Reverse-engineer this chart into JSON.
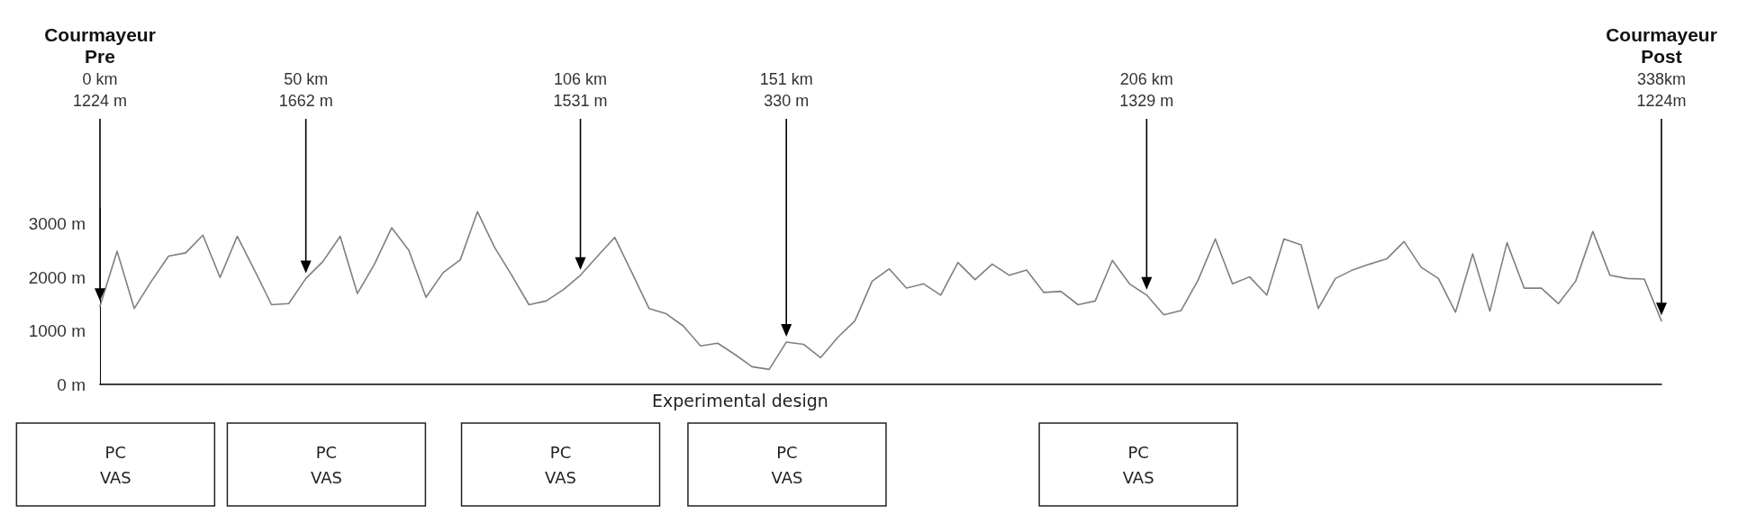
{
  "chart_data": {
    "type": "line",
    "color": "#7f7f7f",
    "marker": "none",
    "tick_labels": "y",
    "categories": [
      null,
      null,
      null,
      null,
      null,
      null,
      null,
      null,
      null,
      null,
      null,
      null,
      null,
      null,
      null,
      null,
      null,
      null,
      null,
      null,
      null,
      null,
      null,
      null,
      null,
      null,
      null,
      null,
      null,
      null,
      null,
      null,
      null,
      null,
      null,
      null,
      null,
      null,
      null,
      null,
      null,
      null,
      null,
      null,
      null,
      null,
      null,
      null,
      null,
      null,
      null,
      null,
      null,
      null,
      null,
      null,
      null,
      null,
      null,
      null,
      null,
      null,
      null,
      null,
      null,
      null,
      null,
      null,
      null,
      null,
      null,
      null,
      null,
      null,
      null,
      null,
      null,
      null,
      null,
      null,
      null,
      null,
      null,
      null,
      null,
      null,
      null,
      null,
      null,
      null,
      null,
      null
    ],
    "values": [
      1460,
      2490,
      1420,
      1930,
      2400,
      2460,
      2790,
      2000,
      2770,
      2140,
      1490,
      1510,
      1980,
      2300,
      2770,
      1700,
      2250,
      2930,
      2510,
      1630,
      2090,
      2330,
      3230,
      2560,
      2040,
      1490,
      1560,
      1770,
      2040,
      2400,
      2750,
      2090,
      1420,
      1320,
      1090,
      720,
      770,
      560,
      330,
      280,
      790,
      750,
      500,
      880,
      1190,
      1930,
      2160,
      1800,
      1880,
      1670,
      2280,
      1960,
      2250,
      2040,
      2140,
      1720,
      1740,
      1490,
      1560,
      2320,
      1880,
      1670,
      1300,
      1380,
      1950,
      2720,
      1880,
      2010,
      1670,
      2720,
      2610,
      1420,
      1980,
      2140,
      2250,
      2350,
      2670,
      2190,
      1980,
      1350,
      2440,
      1370,
      2650,
      1800,
      1800,
      1510,
      1930,
      2860,
      2040,
      1980,
      1970,
      1190
    ],
    "ylim": [
      0,
      3300
    ],
    "grid": false,
    "yticks": [
      {
        "value": 0,
        "label": "0 m"
      },
      {
        "value": 1000,
        "label": "1000 m"
      },
      {
        "value": 2000,
        "label": "2000 m"
      },
      {
        "value": 3000,
        "label": "3000 m"
      }
    ],
    "annotations": [
      "Courmayeur\nPre\n0 km\n1224 m",
      "50 km\n1662 m",
      "106 km\n1531 m",
      "151 km\n330 m",
      "206 km\n1329 m",
      "Courmayeur\nPost\n338km\n1224m",
      "Experimental design",
      "PC\nVAS",
      "PC\nVAS",
      "PC\nVAS",
      "PC\nVAS",
      "PC\nVAS"
    ]
  }
}
